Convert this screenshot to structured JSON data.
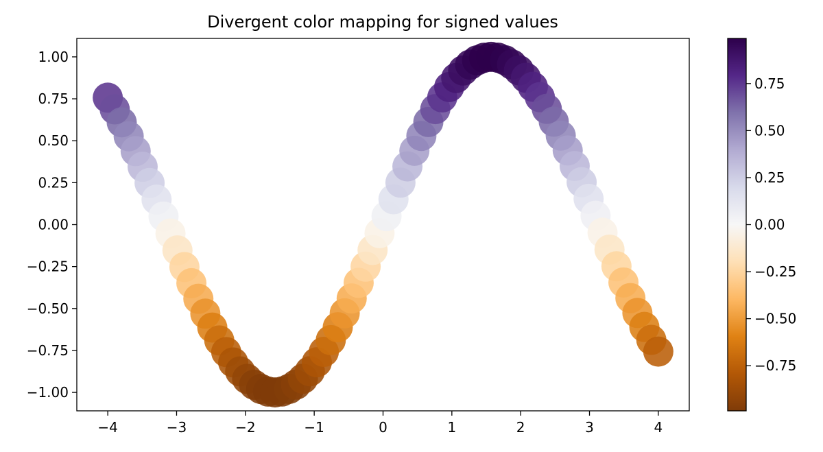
{
  "chart_data": {
    "type": "scatter",
    "title": "Divergent color mapping for signed values",
    "xlabel": "",
    "ylabel": "",
    "x_domain": [
      -4.45,
      4.45
    ],
    "y_domain": [
      -1.11,
      1.11
    ],
    "x_ticks": [
      -4,
      -3,
      -2,
      -1,
      0,
      1,
      2,
      3,
      4
    ],
    "x_tick_labels": [
      "−4",
      "−3",
      "−2",
      "−1",
      "0",
      "1",
      "2",
      "3",
      "4"
    ],
    "y_ticks": [
      -1.0,
      -0.75,
      -0.5,
      -0.25,
      0.0,
      0.25,
      0.5,
      0.75,
      1.0
    ],
    "y_tick_labels": [
      "−1.00",
      "−0.75",
      "−0.50",
      "−0.25",
      "0.00",
      "0.25",
      "0.50",
      "0.75",
      "1.00"
    ],
    "grid": false,
    "x_range": [
      -4,
      4
    ],
    "point_count": 80,
    "function": "y = sin(x)",
    "color_value": "y",
    "colormap": "PuOr",
    "colormap_stops": [
      "#7f3b08",
      "#b35806",
      "#e08214",
      "#fdb863",
      "#fee0b6",
      "#f7f7f7",
      "#d8daeb",
      "#b2abd2",
      "#8073ac",
      "#542788",
      "#2d004b"
    ],
    "colorbar": {
      "range": [
        -0.99,
        0.99
      ],
      "ticks": [
        -0.75,
        -0.5,
        -0.25,
        0.0,
        0.25,
        0.5,
        0.75
      ],
      "tick_labels": [
        "−0.75",
        "−0.50",
        "−0.25",
        "0.00",
        "0.25",
        "0.50",
        "0.75"
      ],
      "placement": "right"
    }
  }
}
